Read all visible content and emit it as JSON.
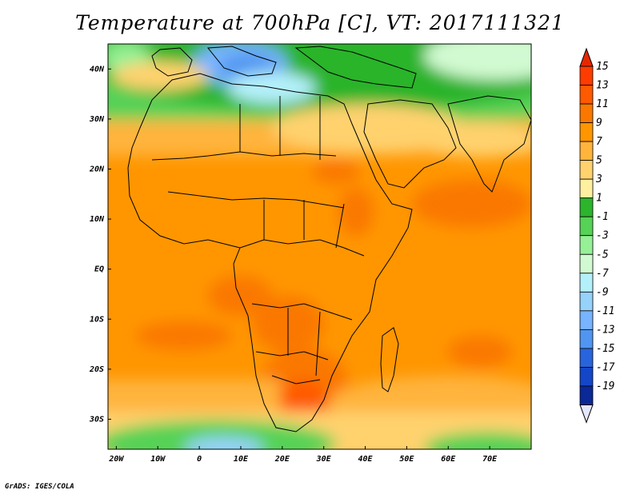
{
  "title": "Temperature at 700hPa [C], VT: 2017111321",
  "credit": "GrADS: IGES/COLA",
  "map": {
    "lat_labels": [
      "40N",
      "30N",
      "20N",
      "10N",
      "EQ",
      "10S",
      "20S",
      "30S"
    ],
    "lat_values": [
      40,
      30,
      20,
      10,
      0,
      -10,
      -20,
      -30
    ],
    "lon_labels": [
      "20W",
      "10W",
      "0",
      "10E",
      "20E",
      "30E",
      "40E",
      "50E",
      "60E",
      "70E"
    ],
    "lon_values": [
      -20,
      -10,
      0,
      10,
      20,
      30,
      40,
      50,
      60,
      70
    ],
    "lon_range": [
      -22,
      80
    ],
    "lat_range": [
      -36,
      45
    ]
  },
  "legend": {
    "levels": [
      "15",
      "13",
      "11",
      "9",
      "7",
      "5",
      "3",
      "1",
      "-1",
      "-3",
      "-5",
      "-7",
      "-9",
      "-11",
      "-13",
      "-15",
      "-17",
      "-19"
    ],
    "colors": [
      "#ff3c00",
      "#ff5a00",
      "#fa7800",
      "#ff9600",
      "#ffb43c",
      "#ffd26e",
      "#fff0a0",
      "#2cb42c",
      "#56d256",
      "#96f096",
      "#d2fad2",
      "#b4f0fa",
      "#96d2fa",
      "#78b4ff",
      "#5096f0",
      "#2864dc",
      "#1446c8",
      "#0a2896",
      "#e6e6ff"
    ],
    "top_color": "#e62800",
    "bottom_color": "#e6e6ff"
  }
}
